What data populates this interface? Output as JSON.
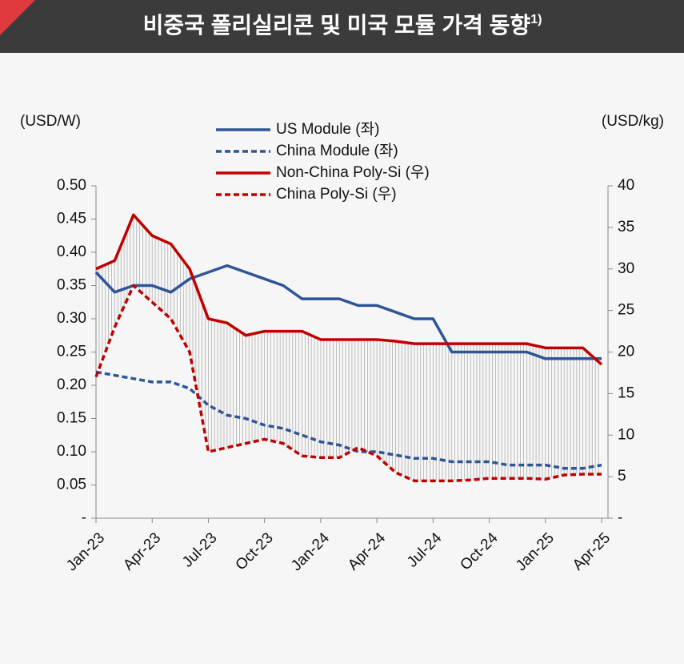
{
  "chart_data": {
    "type": "line",
    "title": "비중국 폴리실리콘 및 미국 모듈 가격 동향",
    "title_note": "1)",
    "y_label": "(USD/W)",
    "y2_label": "(USD/kg)",
    "categories": [
      "Jan-23",
      null,
      null,
      "Apr-23",
      null,
      null,
      "Jul-23",
      null,
      null,
      "Oct-23",
      null,
      null,
      "Jan-24",
      null,
      null,
      "Apr-24",
      null,
      null,
      "Jul-24",
      null,
      null,
      "Oct-24",
      null,
      null,
      "Jan-25",
      null,
      null,
      "Apr-25"
    ],
    "ylim": [
      0,
      0.5
    ],
    "yticks": [
      {
        "value": 0,
        "label": "-"
      },
      0.05,
      {
        "value": 0.1,
        "label": "0.10"
      },
      0.15,
      {
        "value": 0.2,
        "label": "0.20"
      },
      0.25,
      {
        "value": 0.3,
        "label": "0.30"
      },
      0.35,
      {
        "value": 0.4,
        "label": "0.40"
      },
      0.45,
      {
        "value": 0.5,
        "label": "0.50"
      }
    ],
    "y2lim": [
      0,
      40
    ],
    "y2ticks": [
      {
        "value": 0,
        "label": "-"
      },
      5,
      10,
      15,
      20,
      25,
      30,
      35,
      40
    ],
    "legend": "top",
    "series": [
      {
        "name": "US Module (좌)",
        "color": "#2f5597",
        "dash": false,
        "axis": "y",
        "values": [
          0.37,
          0.34,
          0.35,
          0.35,
          0.34,
          0.36,
          0.37,
          0.38,
          0.37,
          0.36,
          0.35,
          0.33,
          0.33,
          0.33,
          0.32,
          0.32,
          0.31,
          0.3,
          0.3,
          0.25,
          0.25,
          0.25,
          0.25,
          0.25,
          0.24,
          0.24,
          0.24,
          0.24
        ]
      },
      {
        "name": "China Module (좌)",
        "color": "#2f5597",
        "dash": true,
        "axis": "y",
        "values": [
          0.22,
          0.215,
          0.21,
          0.205,
          0.205,
          0.195,
          0.17,
          0.155,
          0.15,
          0.14,
          0.135,
          0.125,
          0.115,
          0.11,
          0.1,
          0.1,
          0.095,
          0.09,
          0.09,
          0.085,
          0.085,
          0.085,
          0.08,
          0.08,
          0.08,
          0.075,
          0.075,
          0.08
        ]
      },
      {
        "name": "Non-China Poly-Si (우)",
        "color": "#c00000",
        "dash": false,
        "axis": "y2",
        "values": [
          30,
          31,
          36.5,
          34,
          33,
          30,
          24,
          23.5,
          22,
          22.5,
          22.5,
          22.5,
          21.5,
          21.5,
          21.5,
          21.5,
          21.3,
          21,
          21,
          21,
          21,
          21,
          21,
          21,
          20.5,
          20.5,
          20.5,
          18.5
        ]
      },
      {
        "name": "China Poly-Si (우)",
        "color": "#c00000",
        "dash": true,
        "axis": "y2",
        "values": [
          17,
          23,
          28,
          26,
          24,
          20,
          8,
          8.5,
          9,
          9.5,
          9,
          7.5,
          7.3,
          7.3,
          8.5,
          7.5,
          5.5,
          4.5,
          4.5,
          4.5,
          4.6,
          4.8,
          4.8,
          4.8,
          4.7,
          5.2,
          5.3,
          5.3
        ]
      }
    ]
  }
}
